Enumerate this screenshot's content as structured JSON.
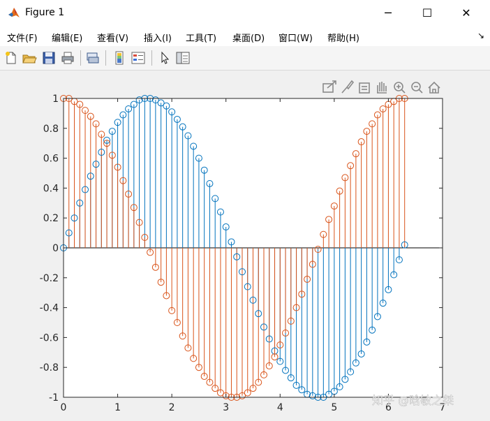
{
  "window": {
    "title": "Figure 1",
    "minimize_glyph": "─",
    "maximize_glyph": "☐",
    "close_glyph": "✕"
  },
  "menu": {
    "items": [
      "文件(F)",
      "编辑(E)",
      "查看(V)",
      "插入(I)",
      "工具(T)",
      "桌面(D)",
      "窗口(W)",
      "帮助(H)"
    ],
    "dock_arrow": "↘"
  },
  "toolbar": {
    "icons": [
      "new-figure-icon",
      "open-file-icon",
      "save-icon",
      "print-icon",
      "print-preview-icon",
      "insert-colorbar-icon",
      "insert-legend-icon",
      "pointer-icon",
      "property-editor-icon"
    ]
  },
  "axes_toolbar": {
    "icons": [
      "export-icon",
      "brush-icon",
      "data-tips-icon",
      "pan-icon",
      "zoom-in-icon",
      "zoom-out-icon",
      "home-icon"
    ]
  },
  "watermark": "知乎 @晗敏之桀",
  "chart_data": {
    "type": "stem",
    "title": "",
    "xlabel": "",
    "ylabel": "",
    "xlim": [
      0,
      7
    ],
    "ylim": [
      -1,
      1
    ],
    "xticks": [
      "0",
      "1",
      "2",
      "3",
      "4",
      "5",
      "6",
      "7"
    ],
    "yticks": [
      "1",
      "0.8",
      "0.6",
      "0.4",
      "0.2",
      "0",
      "-0.2",
      "-0.4",
      "-0.6",
      "-0.8",
      "-1"
    ],
    "x": [
      0,
      0.1,
      0.2,
      0.3,
      0.4,
      0.5,
      0.6,
      0.7,
      0.8,
      0.9,
      1.0,
      1.1,
      1.2,
      1.3,
      1.4,
      1.5,
      1.6,
      1.7,
      1.8,
      1.9,
      2.0,
      2.1,
      2.2,
      2.3,
      2.4,
      2.5,
      2.6,
      2.7,
      2.8,
      2.9,
      3.0,
      3.1,
      3.2,
      3.3,
      3.4,
      3.5,
      3.6,
      3.7,
      3.8,
      3.9,
      4.0,
      4.1,
      4.2,
      4.3,
      4.4,
      4.5,
      4.6,
      4.7,
      4.8,
      4.9,
      5.0,
      5.1,
      5.2,
      5.3,
      5.4,
      5.5,
      5.6,
      5.7,
      5.8,
      5.9,
      6.0,
      6.1,
      6.2,
      6.3
    ],
    "series": [
      {
        "color": "#0072bd",
        "values": [
          0,
          0.1,
          0.2,
          0.3,
          0.39,
          0.48,
          0.56,
          0.64,
          0.72,
          0.78,
          0.84,
          0.89,
          0.93,
          0.96,
          0.99,
          1.0,
          1.0,
          0.99,
          0.97,
          0.95,
          0.91,
          0.86,
          0.81,
          0.75,
          0.68,
          0.6,
          0.52,
          0.43,
          0.33,
          0.24,
          0.14,
          0.04,
          -0.06,
          -0.16,
          -0.26,
          -0.35,
          -0.44,
          -0.53,
          -0.61,
          -0.69,
          -0.76,
          -0.82,
          -0.87,
          -0.92,
          -0.95,
          -0.98,
          -0.99,
          -1.0,
          -1.0,
          -0.98,
          -0.96,
          -0.93,
          -0.88,
          -0.83,
          -0.77,
          -0.71,
          -0.63,
          -0.55,
          -0.46,
          -0.37,
          -0.28,
          -0.18,
          -0.08,
          0.02
        ]
      },
      {
        "color": "#d95319",
        "values": [
          1.0,
          1.0,
          0.98,
          0.96,
          0.92,
          0.88,
          0.83,
          0.76,
          0.7,
          0.62,
          0.54,
          0.45,
          0.36,
          0.27,
          0.17,
          0.07,
          -0.03,
          -0.13,
          -0.23,
          -0.32,
          -0.42,
          -0.5,
          -0.59,
          -0.67,
          -0.74,
          -0.8,
          -0.86,
          -0.9,
          -0.94,
          -0.97,
          -0.99,
          -1.0,
          -1.0,
          -0.99,
          -0.97,
          -0.94,
          -0.9,
          -0.85,
          -0.79,
          -0.73,
          -0.65,
          -0.57,
          -0.49,
          -0.4,
          -0.31,
          -0.21,
          -0.11,
          -0.01,
          0.09,
          0.19,
          0.28,
          0.38,
          0.47,
          0.55,
          0.63,
          0.71,
          0.78,
          0.83,
          0.89,
          0.93,
          0.96,
          0.98,
          1.0,
          1.0
        ]
      }
    ]
  }
}
